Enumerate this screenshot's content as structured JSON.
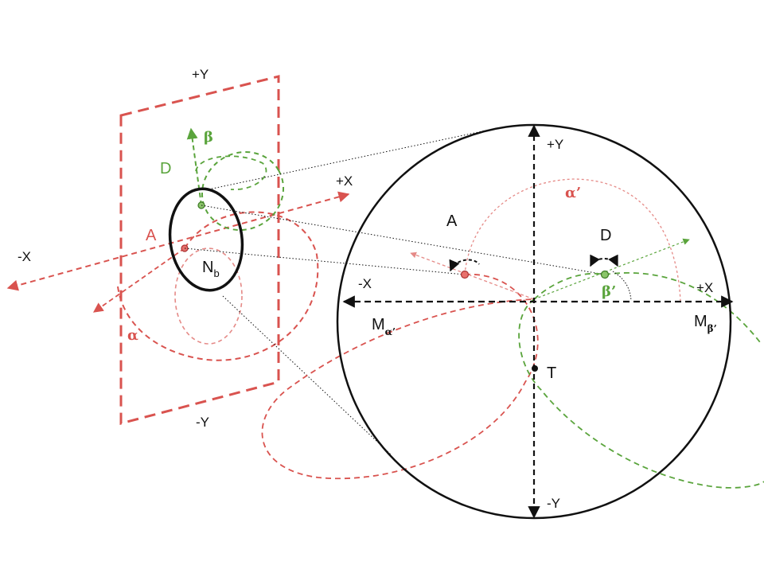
{
  "colors": {
    "red": "#d9534f",
    "red_light": "#e58a87",
    "green": "#5aa43c",
    "black": "#111111"
  },
  "left_view": {
    "axis_pos_y": "+Y",
    "axis_neg_y": "-Y",
    "axis_pos_x": "+X",
    "axis_neg_x": "-X",
    "point_a": "A",
    "point_d": "D",
    "angle_alpha": "α",
    "angle_beta": "β",
    "nucleus_main": "N",
    "nucleus_sub": "b"
  },
  "right_view": {
    "axis_pos_y": "+Y",
    "axis_neg_y": "-Y",
    "axis_pos_x": "+X",
    "axis_neg_x": "-X",
    "point_a": "A",
    "point_d": "D",
    "point_t": "T",
    "angle_alpha_prime": "α’",
    "angle_beta_prime": "β’",
    "m_alpha_main": "M",
    "m_alpha_sub": "α’",
    "m_beta_main": "M",
    "m_beta_sub": "β’"
  }
}
